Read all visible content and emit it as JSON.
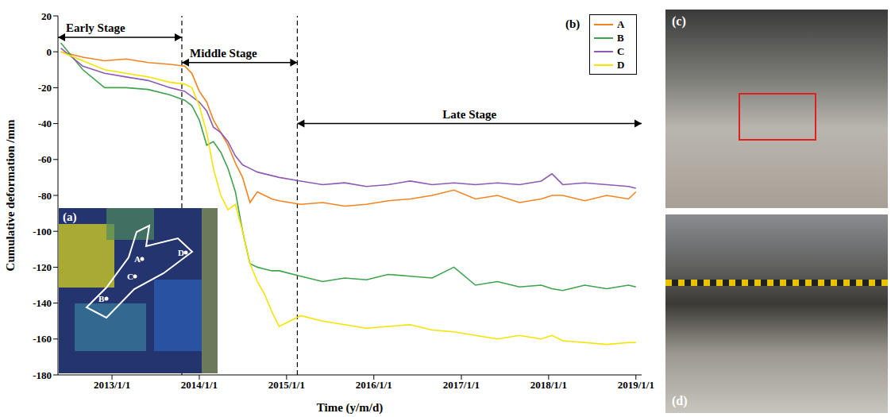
{
  "chart_data": {
    "type": "line",
    "x_label": "Time (y/m/d)",
    "y_label": "Cumulative deformation /mm",
    "x": [
      "2012/6/1",
      "2012/9/1",
      "2012/12/1",
      "2013/3/1",
      "2013/6/1",
      "2013/9/1",
      "2013/11/1",
      "2013/12/1",
      "2014/1/1",
      "2014/2/1",
      "2014/3/1",
      "2014/4/1",
      "2014/5/1",
      "2014/6/1",
      "2014/7/1",
      "2014/8/1",
      "2014/9/1",
      "2014/10/1",
      "2014/11/1",
      "2014/12/1",
      "2015/3/1",
      "2015/6/1",
      "2015/9/1",
      "2015/12/1",
      "2016/3/1",
      "2016/6/1",
      "2016/9/1",
      "2016/12/1",
      "2017/3/1",
      "2017/6/1",
      "2017/9/1",
      "2017/12/1",
      "2018/1/15",
      "2018/3/1",
      "2018/6/1",
      "2018/9/1",
      "2018/12/1",
      "2019/1/1"
    ],
    "series": [
      {
        "name": "A",
        "color": "#f28522",
        "values": [
          0,
          -3,
          -5,
          -4,
          -6,
          -7,
          -8,
          -12,
          -22,
          -28,
          -38,
          -45,
          -52,
          -62,
          -70,
          -84,
          -78,
          -80,
          -82,
          -83,
          -85,
          -84,
          -86,
          -85,
          -83,
          -82,
          -80,
          -77,
          -82,
          -80,
          -84,
          -82,
          -80,
          -80,
          -83,
          -80,
          -82,
          -78
        ]
      },
      {
        "name": "B",
        "color": "#3fa34d",
        "values": [
          5,
          -10,
          -20,
          -20,
          -21,
          -24,
          -27,
          -30,
          -38,
          -52,
          -50,
          -56,
          -65,
          -78,
          -100,
          -118,
          -120,
          -121,
          -122,
          -122,
          -125,
          -128,
          -126,
          -127,
          -124,
          -125,
          -126,
          -120,
          -130,
          -128,
          -131,
          -130,
          -132,
          -133,
          -130,
          -132,
          -130,
          -131
        ]
      },
      {
        "name": "C",
        "color": "#8e5ab5",
        "values": [
          2,
          -8,
          -12,
          -14,
          -16,
          -20,
          -22,
          -25,
          -28,
          -33,
          -42,
          -45,
          -50,
          -58,
          -63,
          -65,
          -67,
          -68,
          -69,
          -70,
          -72,
          -74,
          -73,
          -75,
          -74,
          -72,
          -74,
          -73,
          -74,
          -73,
          -74,
          -72,
          -68,
          -74,
          -73,
          -74,
          -75,
          -76
        ]
      },
      {
        "name": "D",
        "color": "#f5e400",
        "values": [
          0,
          -5,
          -10,
          -12,
          -14,
          -17,
          -18,
          -20,
          -30,
          -45,
          -65,
          -80,
          -88,
          -85,
          -100,
          -118,
          -128,
          -135,
          -145,
          -153,
          -147,
          -150,
          -152,
          -154,
          -153,
          -152,
          -155,
          -156,
          -158,
          -160,
          -158,
          -160,
          -158,
          -161,
          -162,
          -163,
          -162,
          -162
        ]
      }
    ],
    "xlim": [
      "2012/5/20",
      "2019/1/25"
    ],
    "xticks": [
      "2013/1/1",
      "2014/1/1",
      "2015/1/1",
      "2016/1/1",
      "2017/1/1",
      "2018/1/1",
      "2019/1/1"
    ],
    "ylim": [
      -180,
      20
    ],
    "yticks": [
      -180,
      -160,
      -140,
      -120,
      -100,
      -80,
      -60,
      -40,
      -20,
      0,
      20
    ],
    "legend": "upper right",
    "grid": false,
    "annotations": [
      {
        "text": "Early Stage",
        "start": "2012/5/20",
        "end": "2013/10/20"
      },
      {
        "text": "Middle Stage",
        "start": "2013/10/20",
        "end": "2015/2/15"
      },
      {
        "text": "Late Stage",
        "start": "2015/2/15",
        "end": "2019/1/25"
      }
    ]
  },
  "panels": {
    "map": "(a)",
    "chart": "(b)",
    "photo_top": "(c)",
    "photo_bottom": "(d)"
  }
}
